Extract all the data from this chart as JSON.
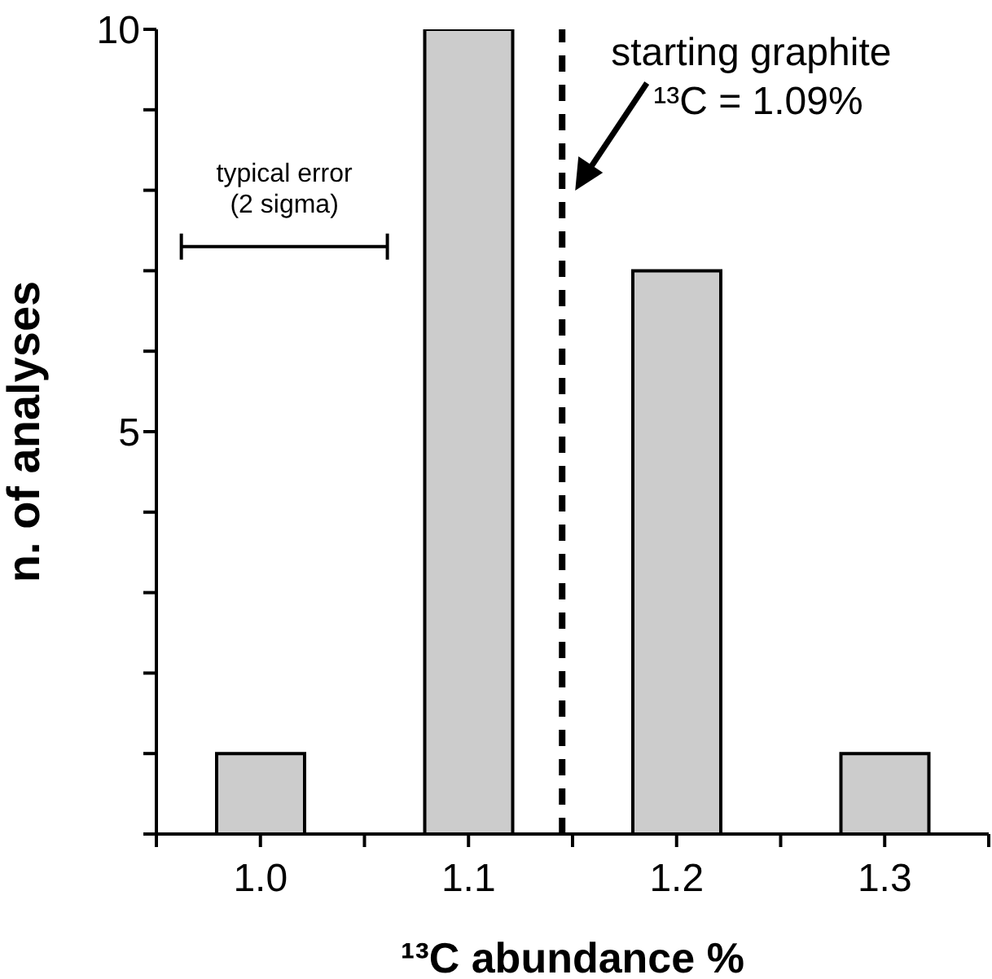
{
  "chart_data": {
    "type": "bar",
    "x": [
      1,
      1.1,
      1.2,
      1.3
    ],
    "values": [
      1,
      10,
      7,
      1
    ],
    "color": "#cccccc",
    "xlabel": "¹³C abundance %",
    "ylabel": "n. of analyses",
    "xlim": [
      0.95,
      1.35
    ],
    "xticks": [
      {
        "value": 0.95,
        "label": null
      },
      {
        "value": 1,
        "label": "1.0"
      },
      {
        "value": 1.05,
        "label": null
      },
      1.1,
      {
        "value": 1.15,
        "label": null
      },
      1.2,
      {
        "value": 1.25,
        "label": null
      },
      1.3,
      {
        "value": 1.35,
        "label": null
      }
    ],
    "ylim": [
      0,
      10
    ],
    "yticks": [
      {
        "value": 0,
        "label": null
      },
      {
        "value": 1,
        "label": null
      },
      {
        "value": 2,
        "label": null
      },
      {
        "value": 3,
        "label": null
      },
      {
        "value": 4,
        "label": null
      },
      5,
      {
        "value": 6,
        "label": null
      },
      {
        "value": 7,
        "label": null
      },
      {
        "value": 8,
        "label": null
      },
      {
        "value": 9,
        "label": null
      },
      10
    ],
    "ref_lines": [
      {
        "axis": "x",
        "value": 1.145,
        "color": "#000000",
        "line_style": "dashed"
      }
    ],
    "annotations": [
      "typical error\n(2 sigma)",
      "starting graphite\n¹³C = 1.09%"
    ],
    "grid": false,
    "legend": false
  }
}
